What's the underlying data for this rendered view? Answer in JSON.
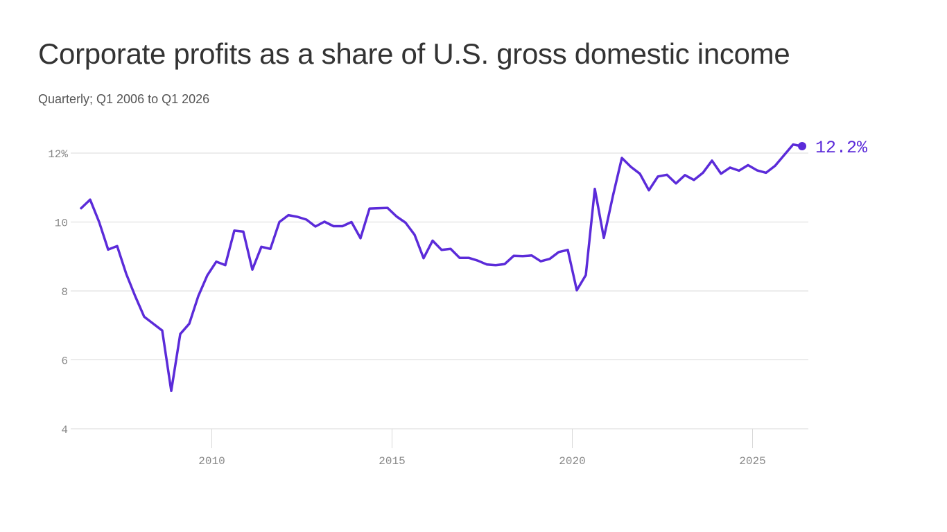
{
  "title": "Corporate profits as a share of U.S. gross domestic income",
  "subtitle": "Quarterly; Q1 2006 to Q1 2026",
  "colors": {
    "line": "#5b2bd9",
    "grid": "#d8d8d8",
    "text": "#333333",
    "tick": "#888888"
  },
  "chart_data": {
    "type": "line",
    "title": "Corporate profits as a share of U.S. gross domestic income",
    "subtitle": "Quarterly; Q1 2006 to Q1 2026",
    "xlabel": "",
    "ylabel": "",
    "xlim": [
      2006.375,
      2026.625
    ],
    "ylim": [
      4,
      12
    ],
    "y_ticks": [
      4,
      6,
      8,
      10,
      12
    ],
    "y_tick_labels": [
      "4",
      "6",
      "8",
      "10",
      "12%"
    ],
    "x_ticks": [
      2010,
      2015,
      2020,
      2025
    ],
    "x_tick_labels": [
      "2010",
      "2015",
      "2020",
      "2025"
    ],
    "grid": "horizontal",
    "end_label": "12.2%",
    "series": [
      {
        "x": [
          2006.375,
          2006.625,
          2006.875,
          2007.125,
          2007.375,
          2007.625,
          2007.875,
          2008.125,
          2008.375,
          2008.625,
          2008.875,
          2009.125,
          2009.375,
          2009.625,
          2009.875,
          2010.125,
          2010.375,
          2010.625,
          2010.875,
          2011.125,
          2011.375,
          2011.625,
          2011.875,
          2012.125,
          2012.375,
          2012.625,
          2012.875,
          2013.125,
          2013.375,
          2013.625,
          2013.875,
          2014.125,
          2014.375,
          2014.625,
          2014.875,
          2015.125,
          2015.375,
          2015.625,
          2015.875,
          2016.125,
          2016.375,
          2016.625,
          2016.875,
          2017.125,
          2017.375,
          2017.625,
          2017.875,
          2018.125,
          2018.375,
          2018.625,
          2018.875,
          2019.125,
          2019.375,
          2019.625,
          2019.875,
          2020.125,
          2020.375,
          2020.625,
          2020.875,
          2021.125,
          2021.375,
          2021.625,
          2021.875,
          2022.125,
          2022.375,
          2022.625,
          2022.875,
          2023.125,
          2023.375,
          2023.625,
          2023.875,
          2024.125,
          2024.375,
          2024.625,
          2024.875,
          2025.125,
          2025.375,
          2025.625,
          2025.875,
          2026.125,
          2026.375
        ],
        "y": [
          10.4,
          10.65,
          10.0,
          9.2,
          9.3,
          8.5,
          7.85,
          7.25,
          7.05,
          6.85,
          5.1,
          6.75,
          7.05,
          7.85,
          8.45,
          8.85,
          8.75,
          9.75,
          9.72,
          8.62,
          9.28,
          9.22,
          10.0,
          10.2,
          10.15,
          10.07,
          9.87,
          10.01,
          9.88,
          9.88,
          10.0,
          9.53,
          10.39,
          10.4,
          10.41,
          10.16,
          9.98,
          9.63,
          8.95,
          9.46,
          9.19,
          9.22,
          8.96,
          8.96,
          8.88,
          8.77,
          8.75,
          8.78,
          9.02,
          9.01,
          9.03,
          8.86,
          8.93,
          9.13,
          9.19,
          8.02,
          8.46,
          10.96,
          9.54,
          10.75,
          11.86,
          11.6,
          11.4,
          10.92,
          11.32,
          11.37,
          11.12,
          11.36,
          11.22,
          11.43,
          11.78,
          11.4,
          11.58,
          11.49,
          11.65,
          11.5,
          11.43,
          11.63,
          11.94,
          12.25,
          12.2
        ]
      }
    ]
  }
}
